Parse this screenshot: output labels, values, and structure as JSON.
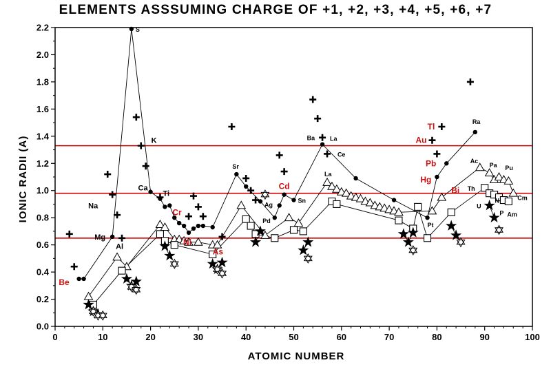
{
  "chart_data": {
    "type": "scatter",
    "title": "ELEMENTS ASSSUMING CHARGE OF  +1, +2, +3, +4, +5, +6, +7",
    "xlabel": "ATOMIC NUMBER",
    "ylabel": "IONIC RADII (A)",
    "xlim": [
      0,
      100
    ],
    "ylim": [
      0,
      2.2
    ],
    "x_ticks": [
      0,
      10,
      20,
      30,
      40,
      50,
      60,
      70,
      80,
      90,
      100
    ],
    "y_ticks": [
      0.0,
      0.2,
      0.4,
      0.6,
      0.8,
      1.0,
      1.2,
      1.4,
      1.6,
      1.8,
      2.0,
      2.2
    ],
    "reference_lines": [
      1.33,
      0.98,
      0.65
    ],
    "colors": {
      "reference_line": "#cc0000",
      "highlight_label": "#cc1111",
      "axis": "#000000"
    },
    "series": [
      {
        "marker": "cross",
        "points": [
          [
            3,
            0.68
          ],
          [
            4,
            0.44
          ],
          [
            11,
            1.12
          ],
          [
            12,
            0.97
          ],
          [
            13,
            0.82
          ],
          [
            14,
            0.65
          ],
          [
            17,
            1.54
          ],
          [
            18,
            1.33
          ],
          [
            19,
            1.18
          ],
          [
            22,
            0.95
          ],
          [
            28,
            0.81
          ],
          [
            29,
            0.96
          ],
          [
            30,
            0.88
          ],
          [
            31,
            0.81
          ],
          [
            35,
            0.66
          ],
          [
            37,
            1.47
          ],
          [
            40,
            1.09
          ],
          [
            41,
            1.0
          ],
          [
            42,
            0.93
          ],
          [
            47,
            1.26
          ],
          [
            48,
            1.14
          ],
          [
            54,
            1.67
          ],
          [
            55,
            1.53
          ],
          [
            56,
            1.39
          ],
          [
            57,
            1.27
          ],
          [
            79,
            1.37
          ],
          [
            80,
            1.27
          ],
          [
            81,
            1.47
          ],
          [
            87,
            1.8
          ]
        ]
      },
      {
        "marker": "circle",
        "points": [
          [
            5,
            0.35
          ],
          [
            6,
            0.35
          ],
          [
            12,
            0.66
          ],
          [
            16,
            2.19
          ],
          [
            20,
            0.99
          ],
          [
            22,
            0.94
          ],
          [
            23,
            0.88
          ],
          [
            24,
            0.89
          ],
          [
            25,
            0.8
          ],
          [
            26,
            0.76
          ],
          [
            27,
            0.74
          ],
          [
            28,
            0.69
          ],
          [
            29,
            0.72
          ],
          [
            30,
            0.74
          ],
          [
            31,
            0.74
          ],
          [
            33,
            0.73
          ],
          [
            38,
            1.12
          ],
          [
            40,
            1.03
          ],
          [
            43,
            0.92
          ],
          [
            46,
            0.8
          ],
          [
            47,
            0.89
          ],
          [
            48,
            0.97
          ],
          [
            50,
            0.93
          ],
          [
            56,
            1.34
          ],
          [
            63,
            1.09
          ],
          [
            71,
            0.93
          ],
          [
            78,
            0.8
          ],
          [
            80,
            1.1
          ],
          [
            82,
            1.2
          ],
          [
            88,
            1.43
          ]
        ]
      },
      {
        "marker": "triangle",
        "points": [
          [
            7,
            0.22
          ],
          [
            13,
            0.51
          ],
          [
            15,
            0.44
          ],
          [
            22,
            0.75
          ],
          [
            23,
            0.73
          ],
          [
            25,
            0.64
          ],
          [
            26,
            0.64
          ],
          [
            27,
            0.63
          ],
          [
            28,
            0.62
          ],
          [
            30,
            0.62
          ],
          [
            33,
            0.6
          ],
          [
            34,
            0.6
          ],
          [
            39,
            0.89
          ],
          [
            44,
            0.67
          ],
          [
            49,
            0.8
          ],
          [
            51,
            0.76
          ],
          [
            57,
            1.06
          ],
          [
            58,
            1.03
          ],
          [
            59,
            1.01
          ],
          [
            60,
            0.99
          ],
          [
            61,
            0.98
          ],
          [
            62,
            0.96
          ],
          [
            63,
            0.95
          ],
          [
            64,
            0.94
          ],
          [
            65,
            0.92
          ],
          [
            66,
            0.91
          ],
          [
            67,
            0.89
          ],
          [
            68,
            0.88
          ],
          [
            69,
            0.87
          ],
          [
            70,
            0.86
          ],
          [
            71,
            0.85
          ],
          [
            72,
            0.84
          ],
          [
            79,
            0.85
          ],
          [
            81,
            0.95
          ],
          [
            89,
            1.17
          ],
          [
            91,
            1.13
          ],
          [
            92,
            1.08
          ],
          [
            93,
            1.1
          ],
          [
            94,
            1.08
          ],
          [
            95,
            1.07
          ],
          [
            96,
            0.98
          ]
        ]
      },
      {
        "marker": "square",
        "points": [
          [
            8,
            0.16
          ],
          [
            14,
            0.41
          ],
          [
            22,
            0.68
          ],
          [
            23,
            0.63
          ],
          [
            25,
            0.6
          ],
          [
            33,
            0.53
          ],
          [
            40,
            0.79
          ],
          [
            41,
            0.74
          ],
          [
            42,
            0.68
          ],
          [
            46,
            0.65
          ],
          [
            50,
            0.71
          ],
          [
            52,
            0.7
          ],
          [
            58,
            0.92
          ],
          [
            59,
            0.9
          ],
          [
            72,
            0.78
          ],
          [
            75,
            0.72
          ],
          [
            76,
            0.88
          ],
          [
            78,
            0.65
          ],
          [
            83,
            0.84
          ],
          [
            90,
            1.02
          ],
          [
            91,
            0.98
          ],
          [
            92,
            0.97
          ],
          [
            93,
            0.95
          ],
          [
            94,
            0.93
          ],
          [
            95,
            0.92
          ]
        ]
      },
      {
        "marker": "filled-star",
        "points": [
          [
            7,
            0.16
          ],
          [
            8,
            0.11
          ],
          [
            9,
            0.09
          ],
          [
            15,
            0.35
          ],
          [
            16,
            0.3
          ],
          [
            17,
            0.33
          ],
          [
            23,
            0.59
          ],
          [
            24,
            0.52
          ],
          [
            33,
            0.46
          ],
          [
            34,
            0.42
          ],
          [
            35,
            0.47
          ],
          [
            42,
            0.62
          ],
          [
            43,
            0.7
          ],
          [
            52,
            0.56
          ],
          [
            53,
            0.62
          ],
          [
            73,
            0.68
          ],
          [
            74,
            0.62
          ],
          [
            75,
            0.69
          ],
          [
            83,
            0.74
          ],
          [
            84,
            0.67
          ],
          [
            91,
            0.89
          ],
          [
            92,
            0.8
          ]
        ]
      },
      {
        "marker": "hexagram",
        "points": [
          [
            8,
            0.11
          ],
          [
            9,
            0.08
          ],
          [
            10,
            0.08
          ],
          [
            16,
            0.29
          ],
          [
            17,
            0.27
          ],
          [
            25,
            0.46
          ],
          [
            34,
            0.42
          ],
          [
            35,
            0.39
          ],
          [
            44,
            0.97
          ],
          [
            53,
            0.5
          ],
          [
            75,
            0.56
          ],
          [
            85,
            0.62
          ],
          [
            93,
            0.71
          ]
        ]
      }
    ],
    "element_labels": [
      {
        "text": "Be",
        "x": 4,
        "y": 0.35,
        "color": "red"
      },
      {
        "text": "Mg",
        "x": 12,
        "y": 0.66,
        "color": "black"
      },
      {
        "text": "Al",
        "x": 13,
        "y": 0.51,
        "color": "black"
      },
      {
        "text": "Na",
        "x": 11,
        "y": 0.97,
        "color": "black"
      },
      {
        "text": "S",
        "x": 16,
        "y": 2.19,
        "color": "black"
      },
      {
        "text": "K",
        "x": 19,
        "y": 1.33,
        "color": "black"
      },
      {
        "text": "Ca",
        "x": 20,
        "y": 0.99,
        "color": "black"
      },
      {
        "text": "Ti",
        "x": 22,
        "y": 0.94,
        "color": "black"
      },
      {
        "text": "Cr",
        "x": 24,
        "y": 0.89,
        "color": "red"
      },
      {
        "text": "Ni",
        "x": 28,
        "y": 0.69,
        "color": "red"
      },
      {
        "text": "As",
        "x": 33,
        "y": 0.6,
        "color": "red"
      },
      {
        "text": "Sr",
        "x": 38,
        "y": 1.12,
        "color": "black"
      },
      {
        "text": "Ag",
        "x": 43,
        "y": 0.92,
        "color": "black"
      },
      {
        "text": "Pd",
        "x": 46,
        "y": 0.8,
        "color": "black"
      },
      {
        "text": "Cd",
        "x": 48,
        "y": 0.97,
        "color": "red"
      },
      {
        "text": "Sn",
        "x": 50,
        "y": 0.93,
        "color": "black"
      },
      {
        "text": "Ba",
        "x": 55,
        "y": 1.34,
        "color": "black"
      },
      {
        "text": "La",
        "x": 57,
        "y": 1.34,
        "color": "black"
      },
      {
        "text": "Ce",
        "x": 58,
        "y": 1.27,
        "color": "black"
      },
      {
        "text": "La",
        "x": 57,
        "y": 1.06,
        "color": "black"
      },
      {
        "text": "Tl",
        "x": 81,
        "y": 1.47,
        "color": "red"
      },
      {
        "text": "Au",
        "x": 79,
        "y": 1.37,
        "color": "red"
      },
      {
        "text": "Pb",
        "x": 81,
        "y": 1.2,
        "color": "red"
      },
      {
        "text": "Hg",
        "x": 80,
        "y": 1.1,
        "color": "red"
      },
      {
        "text": "Bi",
        "x": 83,
        "y": 0.96,
        "color": "red"
      },
      {
        "text": "Pt",
        "x": 78,
        "y": 0.8,
        "color": "black"
      },
      {
        "text": "Ra",
        "x": 88,
        "y": 1.43,
        "color": "black"
      },
      {
        "text": "Ac",
        "x": 89,
        "y": 1.17,
        "color": "black"
      },
      {
        "text": "Pa",
        "x": 91,
        "y": 1.13,
        "color": "black"
      },
      {
        "text": "Pu",
        "x": 94,
        "y": 1.08,
        "color": "black"
      },
      {
        "text": "Th",
        "x": 90,
        "y": 1.02,
        "color": "black"
      },
      {
        "text": "U",
        "x": 91,
        "y": 0.89,
        "color": "black"
      },
      {
        "text": "N",
        "x": 93,
        "y": 0.95,
        "color": "black"
      },
      {
        "text": "P",
        "x": 94,
        "y": 0.93,
        "color": "black"
      },
      {
        "text": "Am",
        "x": 95,
        "y": 0.92,
        "color": "black"
      },
      {
        "text": "Cm",
        "x": 96,
        "y": 0.98,
        "color": "black"
      }
    ]
  }
}
